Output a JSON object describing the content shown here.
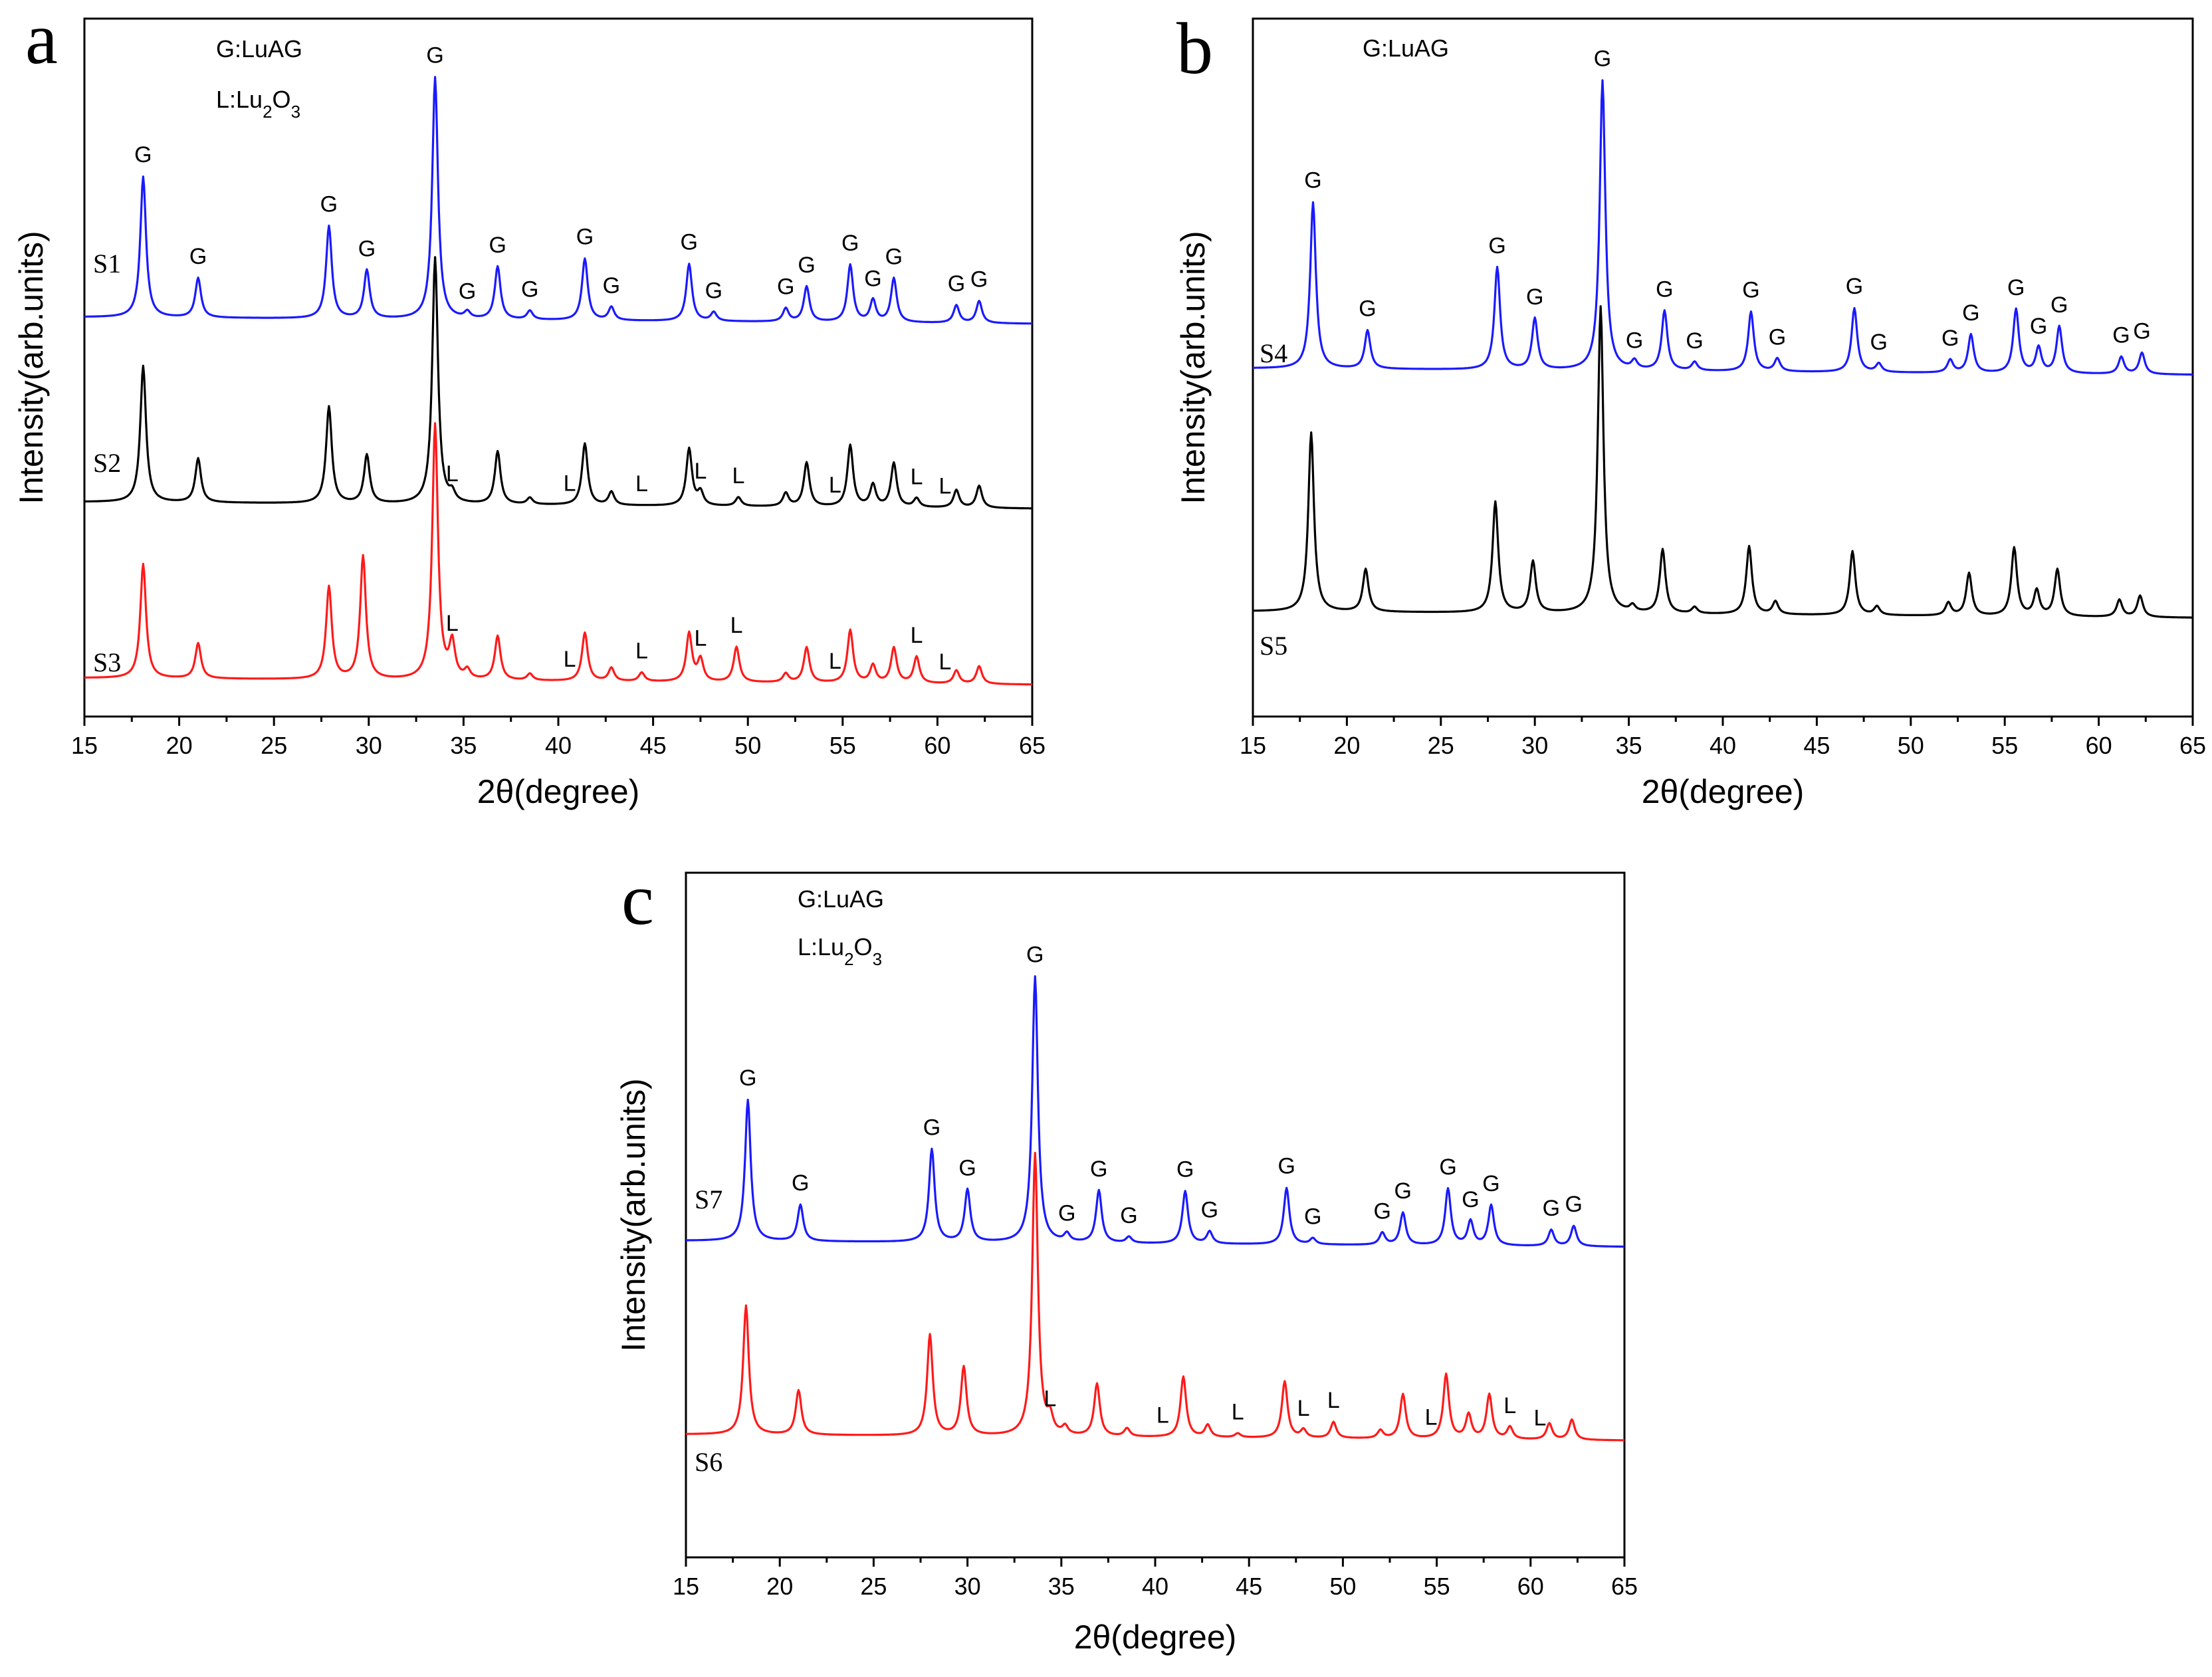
{
  "chart_data": [
    {
      "id": "a",
      "type": "line",
      "panel_label": "a",
      "xlabel": "2θ(degree)",
      "ylabel": "Intensity(arb.units)",
      "xlim": [
        15,
        65
      ],
      "xticks": [
        15,
        20,
        25,
        30,
        35,
        40,
        45,
        50,
        55,
        60,
        65
      ],
      "legend": [
        "G:LuAG",
        "L:Lu2O3"
      ],
      "series": [
        {
          "name": "S1",
          "color": "#1a1aff",
          "baseline": 0.7,
          "peaks": [
            [
              18.1,
              0.32
            ],
            [
              21.0,
              0.09
            ],
            [
              27.9,
              0.21
            ],
            [
              29.9,
              0.11
            ],
            [
              33.5,
              0.55
            ],
            [
              35.2,
              0.015
            ],
            [
              36.8,
              0.12
            ],
            [
              38.5,
              0.02
            ],
            [
              41.4,
              0.14
            ],
            [
              42.8,
              0.03
            ],
            [
              46.9,
              0.13
            ],
            [
              48.2,
              0.02
            ],
            [
              52.0,
              0.03
            ],
            [
              53.1,
              0.08
            ],
            [
              55.4,
              0.13
            ],
            [
              56.6,
              0.05
            ],
            [
              57.7,
              0.1
            ],
            [
              61.0,
              0.04
            ],
            [
              62.2,
              0.05
            ]
          ],
          "labels": [
            [
              "G",
              18.1,
              0.32
            ],
            [
              "G",
              21.0,
              0.09
            ],
            [
              "G",
              27.9,
              0.21
            ],
            [
              "G",
              29.9,
              0.11
            ],
            [
              "G",
              33.5,
              0.55
            ],
            [
              "G",
              35.2,
              0.015
            ],
            [
              "G",
              36.8,
              0.12
            ],
            [
              "G",
              38.5,
              0.02
            ],
            [
              "G",
              41.4,
              0.14
            ],
            [
              "G",
              42.8,
              0.03
            ],
            [
              "G",
              46.9,
              0.13
            ],
            [
              "G",
              48.2,
              0.02
            ],
            [
              "G",
              52.0,
              0.03
            ],
            [
              "G",
              53.1,
              0.08
            ],
            [
              "G",
              55.4,
              0.13
            ],
            [
              "G",
              56.6,
              0.05
            ],
            [
              "G",
              57.7,
              0.1
            ],
            [
              "G",
              61.0,
              0.04
            ],
            [
              "G",
              62.2,
              0.05
            ]
          ]
        },
        {
          "name": "S2",
          "color": "#000000",
          "baseline": 0.28,
          "peaks": [
            [
              18.1,
              0.31
            ],
            [
              21.0,
              0.1
            ],
            [
              27.9,
              0.22
            ],
            [
              29.9,
              0.11
            ],
            [
              33.5,
              0.56
            ],
            [
              34.4,
              0.02
            ],
            [
              36.8,
              0.12
            ],
            [
              38.5,
              0.015
            ],
            [
              41.4,
              0.14
            ],
            [
              42.8,
              0.03
            ],
            [
              46.9,
              0.13
            ],
            [
              47.5,
              0.03
            ],
            [
              49.5,
              0.02
            ],
            [
              52.0,
              0.03
            ],
            [
              53.1,
              0.1
            ],
            [
              55.4,
              0.14
            ],
            [
              56.6,
              0.05
            ],
            [
              57.7,
              0.1
            ],
            [
              58.9,
              0.02
            ],
            [
              61.0,
              0.04
            ],
            [
              62.2,
              0.05
            ]
          ],
          "labels": [
            [
              "L",
              34.4,
              0.02
            ],
            [
              "L",
              40.6,
              0.0
            ],
            [
              "L",
              44.4,
              0.0
            ],
            [
              "L",
              47.5,
              0.03
            ],
            [
              "L",
              49.5,
              0.02
            ],
            [
              "L",
              54.6,
              0.0
            ],
            [
              "L",
              58.9,
              0.02
            ],
            [
              "L",
              60.4,
              0.0
            ]
          ]
        },
        {
          "name": "S3",
          "color": "#ff1a1a",
          "baseline": -0.12,
          "peaks": [
            [
              18.1,
              0.26
            ],
            [
              21.0,
              0.08
            ],
            [
              27.9,
              0.21
            ],
            [
              29.7,
              0.28
            ],
            [
              33.5,
              0.58
            ],
            [
              34.4,
              0.08
            ],
            [
              35.2,
              0.02
            ],
            [
              36.8,
              0.1
            ],
            [
              38.5,
              0.015
            ],
            [
              41.4,
              0.11
            ],
            [
              42.8,
              0.03
            ],
            [
              44.4,
              0.02
            ],
            [
              46.9,
              0.11
            ],
            [
              47.5,
              0.05
            ],
            [
              49.4,
              0.08
            ],
            [
              52.0,
              0.02
            ],
            [
              53.1,
              0.08
            ],
            [
              55.4,
              0.12
            ],
            [
              56.6,
              0.04
            ],
            [
              57.7,
              0.08
            ],
            [
              58.9,
              0.06
            ],
            [
              61.0,
              0.03
            ],
            [
              62.2,
              0.04
            ]
          ],
          "labels": [
            [
              "L",
              34.4,
              0.08
            ],
            [
              "L",
              40.6,
              0.0
            ],
            [
              "L",
              44.4,
              0.02
            ],
            [
              "L",
              47.5,
              0.05
            ],
            [
              "L",
              49.4,
              0.08
            ],
            [
              "L",
              54.6,
              0.0
            ],
            [
              "L",
              58.9,
              0.06
            ],
            [
              "L",
              60.4,
              0.0
            ]
          ]
        }
      ]
    },
    {
      "id": "b",
      "type": "line",
      "panel_label": "b",
      "xlabel": "2θ(degree)",
      "ylabel": "Intensity(arb.units)",
      "xlim": [
        15,
        65
      ],
      "xticks": [
        15,
        20,
        25,
        30,
        35,
        40,
        45,
        50,
        55,
        60,
        65
      ],
      "legend": [
        "G:LuAG"
      ],
      "series": [
        {
          "name": "S4",
          "color": "#1a1aff",
          "baseline": 0.56,
          "peaks": [
            [
              18.2,
              0.39
            ],
            [
              21.1,
              0.09
            ],
            [
              28.0,
              0.24
            ],
            [
              30.0,
              0.12
            ],
            [
              33.6,
              0.68
            ],
            [
              35.3,
              0.02
            ],
            [
              36.9,
              0.14
            ],
            [
              38.5,
              0.02
            ],
            [
              41.5,
              0.14
            ],
            [
              42.9,
              0.03
            ],
            [
              47.0,
              0.15
            ],
            [
              48.3,
              0.02
            ],
            [
              52.1,
              0.03
            ],
            [
              53.2,
              0.09
            ],
            [
              55.6,
              0.15
            ],
            [
              56.8,
              0.06
            ],
            [
              57.9,
              0.11
            ],
            [
              61.2,
              0.04
            ],
            [
              62.3,
              0.05
            ]
          ],
          "labels": [
            [
              "G",
              18.2,
              0.39
            ],
            [
              "G",
              21.1,
              0.09
            ],
            [
              "G",
              28.0,
              0.24
            ],
            [
              "G",
              30.0,
              0.12
            ],
            [
              "G",
              33.6,
              0.68
            ],
            [
              "G",
              35.3,
              0.02
            ],
            [
              "G",
              36.9,
              0.14
            ],
            [
              "G",
              38.5,
              0.02
            ],
            [
              "G",
              41.5,
              0.14
            ],
            [
              "G",
              42.9,
              0.03
            ],
            [
              "G",
              47.0,
              0.15
            ],
            [
              "G",
              48.3,
              0.02
            ],
            [
              "G",
              52.1,
              0.03
            ],
            [
              "G",
              53.2,
              0.09
            ],
            [
              "G",
              55.6,
              0.15
            ],
            [
              "G",
              56.8,
              0.06
            ],
            [
              "G",
              57.9,
              0.11
            ],
            [
              "G",
              61.2,
              0.04
            ],
            [
              "G",
              62.3,
              0.05
            ]
          ]
        },
        {
          "name": "S5",
          "color": "#000000",
          "baseline": -0.01,
          "peaks": [
            [
              18.1,
              0.42
            ],
            [
              21.0,
              0.1
            ],
            [
              27.9,
              0.26
            ],
            [
              29.9,
              0.12
            ],
            [
              33.5,
              0.72
            ],
            [
              35.2,
              0.015
            ],
            [
              36.8,
              0.15
            ],
            [
              38.5,
              0.015
            ],
            [
              41.4,
              0.16
            ],
            [
              42.8,
              0.03
            ],
            [
              46.9,
              0.15
            ],
            [
              48.2,
              0.02
            ],
            [
              52.0,
              0.03
            ],
            [
              53.1,
              0.1
            ],
            [
              55.5,
              0.16
            ],
            [
              56.7,
              0.06
            ],
            [
              57.8,
              0.11
            ],
            [
              61.1,
              0.04
            ],
            [
              62.2,
              0.05
            ]
          ],
          "labels": []
        }
      ]
    },
    {
      "id": "c",
      "type": "line",
      "panel_label": "c",
      "xlabel": "2θ(degree)",
      "ylabel": "Intensity(arb.units)",
      "xlim": [
        15,
        65
      ],
      "xticks": [
        15,
        20,
        25,
        30,
        35,
        40,
        45,
        50,
        55,
        60,
        65
      ],
      "legend": [
        "G:LuAG",
        "L:Lu2O3"
      ],
      "series": [
        {
          "name": "S7",
          "color": "#1a1aff",
          "baseline": 0.48,
          "peaks": [
            [
              18.3,
              0.35
            ],
            [
              21.1,
              0.09
            ],
            [
              28.1,
              0.23
            ],
            [
              30.0,
              0.13
            ],
            [
              33.6,
              0.66
            ],
            [
              35.3,
              0.02
            ],
            [
              37.0,
              0.13
            ],
            [
              38.6,
              0.015
            ],
            [
              41.6,
              0.13
            ],
            [
              42.9,
              0.03
            ],
            [
              47.0,
              0.14
            ],
            [
              48.4,
              0.015
            ],
            [
              52.1,
              0.03
            ],
            [
              53.2,
              0.08
            ],
            [
              55.6,
              0.14
            ],
            [
              56.8,
              0.06
            ],
            [
              57.9,
              0.1
            ],
            [
              61.1,
              0.04
            ],
            [
              62.3,
              0.05
            ]
          ],
          "labels": [
            [
              "G",
              18.3,
              0.35
            ],
            [
              "G",
              21.1,
              0.09
            ],
            [
              "G",
              28.1,
              0.23
            ],
            [
              "G",
              30.0,
              0.13
            ],
            [
              "G",
              33.6,
              0.66
            ],
            [
              "G",
              35.3,
              0.02
            ],
            [
              "G",
              37.0,
              0.13
            ],
            [
              "G",
              38.6,
              0.015
            ],
            [
              "G",
              41.6,
              0.13
            ],
            [
              "G",
              42.9,
              0.03
            ],
            [
              "G",
              47.0,
              0.14
            ],
            [
              "G",
              48.4,
              0.015
            ],
            [
              "G",
              52.1,
              0.03
            ],
            [
              "G",
              53.2,
              0.08
            ],
            [
              "G",
              55.6,
              0.14
            ],
            [
              "G",
              56.8,
              0.06
            ],
            [
              "G",
              57.9,
              0.1
            ],
            [
              "G",
              61.1,
              0.04
            ],
            [
              "G",
              62.3,
              0.05
            ]
          ]
        },
        {
          "name": "S6",
          "color": "#ff1a1a",
          "baseline": 0.0,
          "peaks": [
            [
              18.2,
              0.32
            ],
            [
              21.0,
              0.11
            ],
            [
              28.0,
              0.25
            ],
            [
              29.8,
              0.17
            ],
            [
              33.6,
              0.7
            ],
            [
              34.4,
              0.04
            ],
            [
              35.2,
              0.02
            ],
            [
              36.9,
              0.13
            ],
            [
              38.5,
              0.02
            ],
            [
              41.5,
              0.15
            ],
            [
              42.8,
              0.03
            ],
            [
              44.4,
              0.01
            ],
            [
              46.9,
              0.14
            ],
            [
              47.9,
              0.02
            ],
            [
              49.5,
              0.04
            ],
            [
              52.0,
              0.02
            ],
            [
              53.2,
              0.11
            ],
            [
              55.5,
              0.16
            ],
            [
              56.7,
              0.06
            ],
            [
              57.8,
              0.11
            ],
            [
              58.9,
              0.03
            ],
            [
              61.0,
              0.04
            ],
            [
              62.2,
              0.05
            ]
          ],
          "labels": [
            [
              "L",
              34.4,
              0.04
            ],
            [
              "L",
              40.4,
              0.0
            ],
            [
              "L",
              44.4,
              0.01
            ],
            [
              "L",
              47.9,
              0.02
            ],
            [
              "L",
              49.5,
              0.04
            ],
            [
              "L",
              54.7,
              0.0
            ],
            [
              "L",
              58.9,
              0.03
            ],
            [
              "L",
              60.5,
              0.0
            ]
          ]
        }
      ]
    }
  ]
}
